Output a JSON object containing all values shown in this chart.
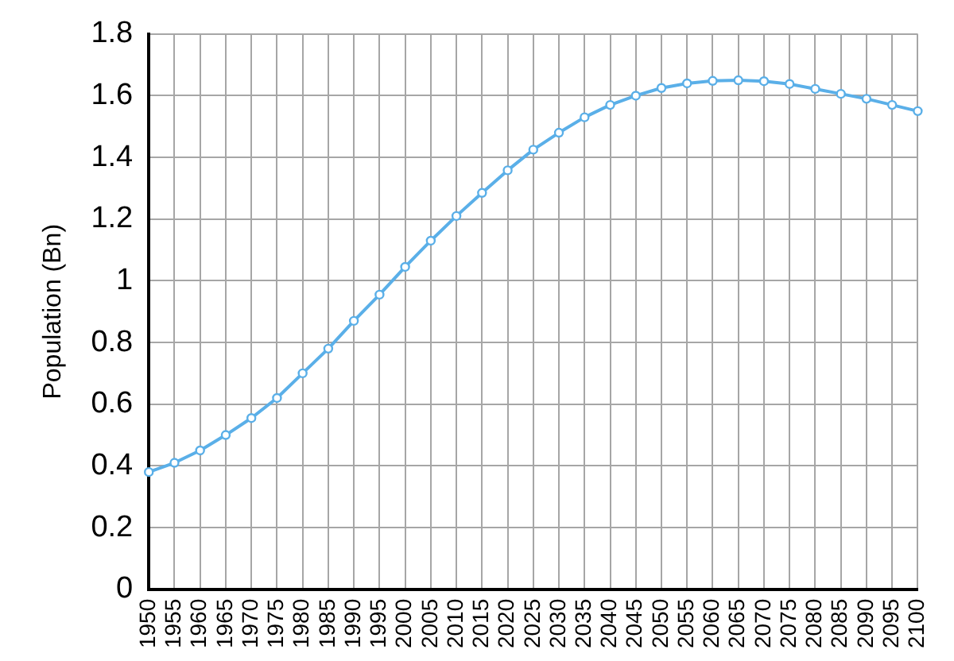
{
  "chart_data": {
    "type": "line",
    "ylabel": "Population (Bn)",
    "categories": [
      "1950",
      "1955",
      "1960",
      "1965",
      "1970",
      "1975",
      "1980",
      "1985",
      "1990",
      "1995",
      "2000",
      "2005",
      "2010",
      "2015",
      "2020",
      "2025",
      "2030",
      "2035",
      "2040",
      "2045",
      "2050",
      "2055",
      "2060",
      "2065",
      "2070",
      "2075",
      "2080",
      "2085",
      "2090",
      "2095",
      "2100"
    ],
    "series": [
      {
        "color": "#5aafe8",
        "values": [
          0.38,
          0.41,
          0.45,
          0.5,
          0.555,
          0.62,
          0.7,
          0.78,
          0.87,
          0.955,
          1.045,
          1.13,
          1.21,
          1.285,
          1.358,
          1.425,
          1.48,
          1.53,
          1.57,
          1.6,
          1.625,
          1.64,
          1.648,
          1.65,
          1.647,
          1.638,
          1.622,
          1.606,
          1.59,
          1.57,
          1.55
        ]
      }
    ],
    "ylim": [
      0,
      1.8
    ],
    "yticks": [
      0,
      0.2,
      0.4,
      0.6,
      0.8,
      1,
      1.2,
      1.4,
      1.6,
      1.8
    ],
    "grid": true,
    "marker": "circle",
    "line_style": "solid",
    "legend": false
  }
}
